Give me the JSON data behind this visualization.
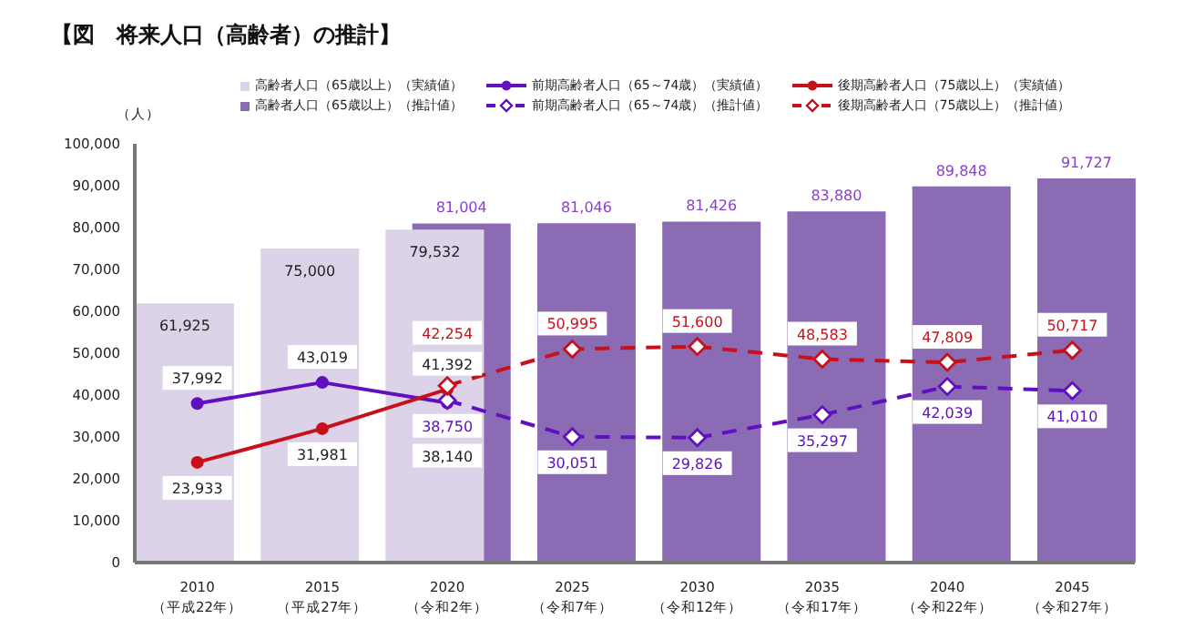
{
  "chart_data": {
    "type": "bar",
    "title": "【図　将来人口（高齢者）の推計】",
    "ylabel": "（人）",
    "categories": [
      "2010\n（平成22年）",
      "2015\n（平成27年）",
      "2020\n（令和2年）",
      "2025\n（令和7年）",
      "2030\n（令和12年）",
      "2035\n（令和17年）",
      "2040\n（令和22年）",
      "2045\n（令和27年）"
    ],
    "series": [
      {
        "name": "高齢者人口（65歳以上）（実績値）",
        "color": "#ddd3e8",
        "values": [
          61925,
          75000,
          79532,
          null,
          null,
          null,
          null,
          null
        ],
        "value_labels": [
          "61,925",
          "75,000",
          "79,532",
          null,
          null,
          null,
          null,
          null
        ]
      },
      {
        "name": "高齢者人口（65歳以上）（推計値）",
        "color": "#8a6bb4",
        "values": [
          null,
          null,
          81004,
          81046,
          81426,
          83880,
          89848,
          91727
        ],
        "value_labels": [
          null,
          null,
          "81,004",
          "81,046",
          "81,426",
          "83,880",
          "89,848",
          "91,727"
        ]
      },
      {
        "type": "line",
        "name": "前期高齢者人口（65～74歳）（実績値）",
        "color": "#6010c0",
        "marker": "circle",
        "line_style": "solid",
        "values": [
          37992,
          43019,
          38140,
          null,
          null,
          null,
          null,
          null
        ],
        "value_labels": [
          "37,992",
          "43,019",
          "38,140",
          null,
          null,
          null,
          null,
          null
        ]
      },
      {
        "type": "line",
        "name": "前期高齢者人口（65～74歳）（推計値）",
        "color": "#6010c0",
        "marker": "diamond",
        "line_style": "dashed",
        "values": [
          null,
          null,
          38750,
          30051,
          29826,
          35297,
          42039,
          41010
        ],
        "value_labels": [
          null,
          null,
          "38,750",
          "30,051",
          "29,826",
          "35,297",
          "42,039",
          "41,010"
        ]
      },
      {
        "type": "line",
        "name": "後期高齢者人口（75歳以上）（実績値）",
        "color": "#c8101a",
        "marker": "circle",
        "line_style": "solid",
        "values": [
          23933,
          31981,
          41392,
          null,
          null,
          null,
          null,
          null
        ],
        "value_labels": [
          "23,933",
          "31,981",
          "41,392",
          null,
          null,
          null,
          null,
          null
        ]
      },
      {
        "type": "line",
        "name": "後期高齢者人口（75歳以上）（推計値）",
        "color": "#c8101a",
        "marker": "diamond",
        "line_style": "dashed",
        "values": [
          null,
          null,
          42254,
          50995,
          51600,
          48583,
          47809,
          50717
        ],
        "value_labels": [
          null,
          null,
          "42,254",
          "50,995",
          "51,600",
          "48,583",
          "47,809",
          "50,717"
        ]
      }
    ],
    "ylim": [
      0,
      100000
    ],
    "yticks": [
      0,
      {
        "value": 10000,
        "label": "10,000"
      },
      {
        "value": 20000,
        "label": "20,000"
      },
      {
        "value": 30000,
        "label": "30,000"
      },
      {
        "value": 40000,
        "label": "40,000"
      },
      {
        "value": 50000,
        "label": "50,000"
      },
      {
        "value": 60000,
        "label": "60,000"
      },
      {
        "value": 70000,
        "label": "70,000"
      },
      {
        "value": 80000,
        "label": "80,000"
      },
      {
        "value": 90000,
        "label": "90,000"
      },
      {
        "value": 100000,
        "label": "100,000"
      }
    ],
    "grid": false,
    "legend": "top"
  }
}
